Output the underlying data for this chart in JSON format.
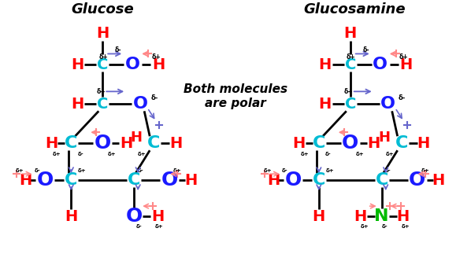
{
  "title_glucose": "Glucose",
  "title_glucosamine": "Glucosamine",
  "center_text": "Both molecules\nare polar",
  "bg_color": "#ffffff",
  "colors": {
    "H": "#ff0000",
    "C_cyan": "#00bcd4",
    "O_blue": "#1a1aff",
    "N_green": "#00bb00",
    "bond": "#000000",
    "arrow_blue": "#6666cc",
    "arrow_red": "#ff8888",
    "delta_black": "#000000"
  }
}
